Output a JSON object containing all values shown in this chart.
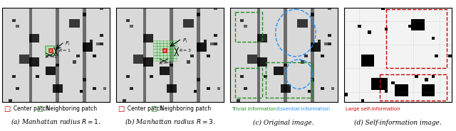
{
  "title_a": "(a) Manhattan radius $R = 1$.",
  "title_b": "(b) Manhattan radius $R = 3$.",
  "title_c": "(c) Original image.",
  "title_d": "(d) Self-information image.",
  "legend_a_center": ": Center patch",
  "legend_a_neighbor": ": Neighboring patch",
  "legend_c_trivial": "Trivial information",
  "legend_c_essential": "Essential information",
  "legend_d": "Large self-information",
  "background": "#f5f5f0"
}
